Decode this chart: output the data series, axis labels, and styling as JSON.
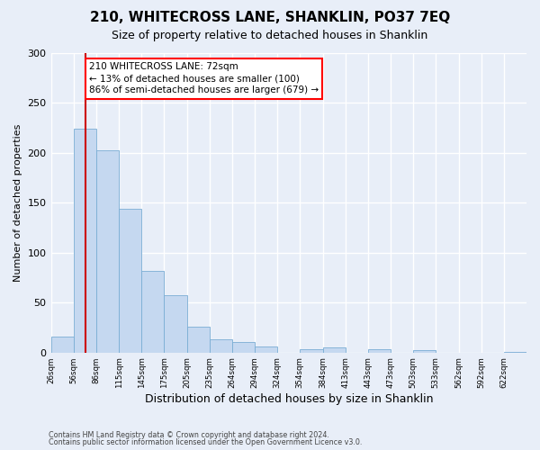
{
  "title": "210, WHITECROSS LANE, SHANKLIN, PO37 7EQ",
  "subtitle": "Size of property relative to detached houses in Shanklin",
  "xlabel": "Distribution of detached houses by size in Shanklin",
  "ylabel": "Number of detached properties",
  "bar_color": "#c5d8f0",
  "bar_edge_color": "#7aadd4",
  "background_color": "#e8eef8",
  "grid_color": "#ffffff",
  "bin_labels": [
    "26sqm",
    "56sqm",
    "86sqm",
    "115sqm",
    "145sqm",
    "175sqm",
    "205sqm",
    "235sqm",
    "264sqm",
    "294sqm",
    "324sqm",
    "354sqm",
    "384sqm",
    "413sqm",
    "443sqm",
    "473sqm",
    "503sqm",
    "533sqm",
    "562sqm",
    "592sqm",
    "622sqm"
  ],
  "bar_heights": [
    16,
    224,
    203,
    144,
    82,
    57,
    26,
    13,
    11,
    6,
    0,
    3,
    5,
    0,
    3,
    0,
    2,
    0,
    0,
    0,
    1
  ],
  "n_bars": 21,
  "marker_bin": 1.5,
  "marker_color": "#cc0000",
  "ylim": [
    0,
    300
  ],
  "yticks": [
    0,
    50,
    100,
    150,
    200,
    250,
    300
  ],
  "annotation_title": "210 WHITECROSS LANE: 72sqm",
  "annotation_line1": "← 13% of detached houses are smaller (100)",
  "annotation_line2": "86% of semi-detached houses are larger (679) →",
  "footer_line1": "Contains HM Land Registry data © Crown copyright and database right 2024.",
  "footer_line2": "Contains public sector information licensed under the Open Government Licence v3.0."
}
